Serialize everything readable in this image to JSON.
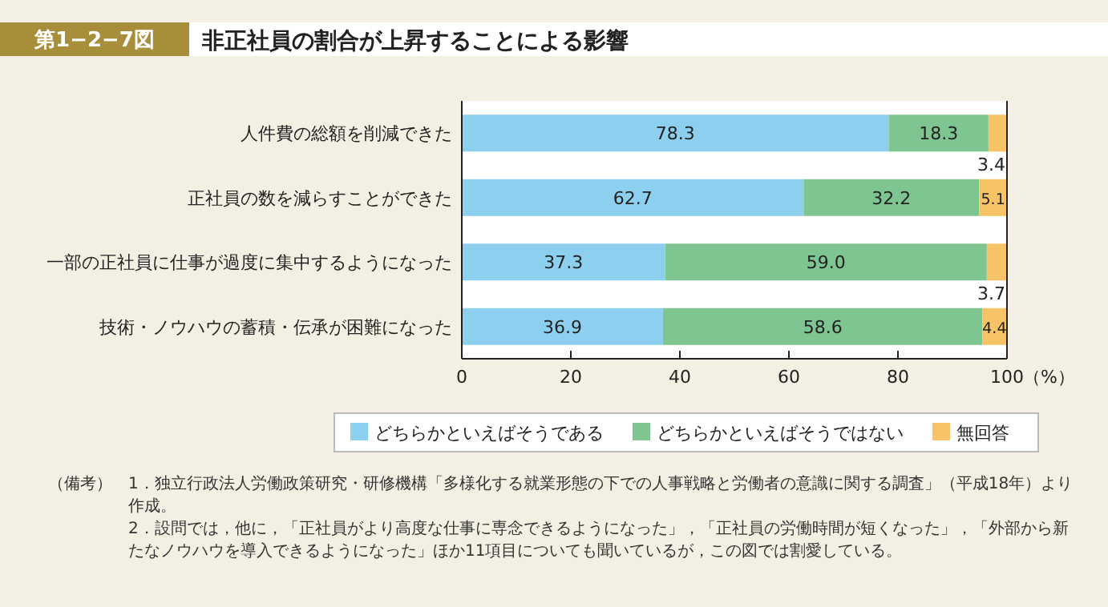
{
  "chart_data": {
    "type": "bar",
    "title": "非正社員の割合が上昇することによる影響",
    "subtitle": "第1−2−7図",
    "xlabel": "（%）",
    "orientation": "horizontal",
    "stacked": true,
    "categories": [
      "人件費の総額を削減できた",
      "正社員の数を減らすことができた",
      "一部の正社員に仕事が過度に集中するようになった",
      "技術・ノウハウの蓄積・伝承が困難になった"
    ],
    "series": [
      {
        "name": "どちらかといえばそうである",
        "color": "#8ccfee",
        "values": [
          78.3,
          62.7,
          37.3,
          36.9
        ],
        "value_labels": [
          "78.3",
          "62.7",
          "37.3",
          "36.9"
        ]
      },
      {
        "name": "どちらかといえばそうではない",
        "color": "#7fc592",
        "values": [
          18.3,
          32.2,
          59.0,
          58.6
        ],
        "value_labels": [
          "18.3",
          "32.2",
          "59.0",
          "58.6"
        ]
      },
      {
        "name": "無回答",
        "color": "#f6c467",
        "values": [
          3.4,
          5.1,
          3.7,
          4.4
        ],
        "value_labels": [
          "3.4",
          "5.1",
          "3.7",
          "4.4"
        ]
      }
    ],
    "xlim": [
      0,
      100
    ],
    "xticks": [
      0,
      20,
      40,
      60,
      80,
      100
    ],
    "legend": "bottom",
    "annotations": [
      "（備考）",
      "1．独立行政法人労働政策研究・研修機構「多様化する就業形態の下での人事戦略と労働者の意識に関する調査」（平成18年）より作成。",
      "2．設問では，他に，「正社員がより高度な仕事に専念できるようになった」，「正社員の労働時間が短くなった」，「外部から新たなノウハウを導入できるようになった」ほか11項目についても聞いているが，この図では割愛している。"
    ]
  }
}
